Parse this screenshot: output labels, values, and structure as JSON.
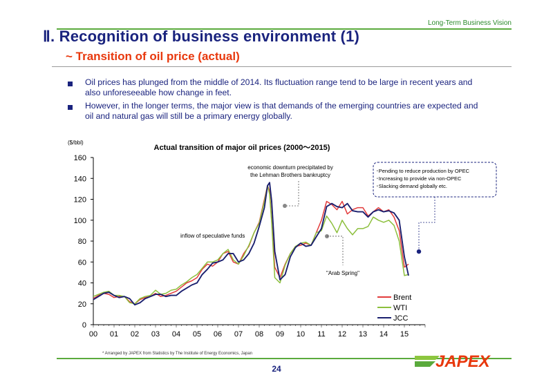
{
  "header": {
    "tag": "Long-Term Business Vision",
    "title": "Ⅱ. Recognition of business environment (1)",
    "subtitle": "~ Transition of oil price (actual)"
  },
  "bullets": [
    "Oil prices has plunged from the middle of 2014. Its fluctuation range tend to be large in recent years and also unforeseeable how change in feet.",
    "However, in the longer terms, the major view is that demands of the emerging countries are expected and oil and natural gas will still be a primary energy globally."
  ],
  "chart_data": {
    "type": "line",
    "title": "Actual transition of major oil prices (2000～2015)",
    "ylabel": "($/bbl)",
    "xlabel": "",
    "ylim": [
      0,
      160
    ],
    "yticks": [
      "0",
      "20",
      "40",
      "60",
      "80",
      "100",
      "120",
      "140",
      "160"
    ],
    "xticks": [
      "00",
      "01",
      "02",
      "03",
      "04",
      "05",
      "06",
      "07",
      "08",
      "09",
      "10",
      "11",
      "12",
      "13",
      "14",
      "15"
    ],
    "xlim": [
      0,
      16
    ],
    "grid": false,
    "legend_position": "bottom-right",
    "x": [
      0,
      0.25,
      0.5,
      0.75,
      1,
      1.25,
      1.5,
      1.75,
      2,
      2.25,
      2.5,
      2.75,
      3,
      3.25,
      3.5,
      3.75,
      4,
      4.25,
      4.5,
      4.75,
      5,
      5.25,
      5.5,
      5.75,
      6,
      6.25,
      6.5,
      6.75,
      7,
      7.25,
      7.5,
      7.75,
      8,
      8.25,
      8.4,
      8.5,
      8.6,
      8.75,
      9,
      9.25,
      9.5,
      9.75,
      10,
      10.25,
      10.5,
      10.75,
      11,
      11.25,
      11.5,
      11.75,
      12,
      12.25,
      12.5,
      12.75,
      13,
      13.25,
      13.5,
      13.75,
      14,
      14.25,
      14.5,
      14.75,
      15,
      15.2
    ],
    "series": [
      {
        "name": "Brent",
        "color": "#e23b3b",
        "values": [
          25,
          28,
          30,
          29,
          26,
          27,
          27,
          22,
          20,
          24,
          26,
          27,
          30,
          27,
          28,
          30,
          32,
          36,
          40,
          42,
          45,
          53,
          58,
          56,
          60,
          68,
          70,
          60,
          58,
          68,
          75,
          88,
          98,
          120,
          133,
          128,
          100,
          55,
          45,
          58,
          68,
          75,
          76,
          78,
          76,
          88,
          100,
          118,
          115,
          110,
          118,
          106,
          110,
          112,
          112,
          104,
          108,
          112,
          108,
          110,
          103,
          90,
          55,
          58
        ]
      },
      {
        "name": "WTI",
        "color": "#8cbf3c",
        "values": [
          27,
          29,
          31,
          32,
          28,
          28,
          27,
          21,
          20,
          25,
          27,
          28,
          33,
          29,
          30,
          33,
          34,
          38,
          41,
          45,
          48,
          54,
          60,
          60,
          62,
          68,
          72,
          62,
          58,
          66,
          76,
          88,
          97,
          118,
          133,
          125,
          98,
          45,
          40,
          57,
          68,
          75,
          78,
          79,
          76,
          88,
          90,
          104,
          97,
          88,
          100,
          92,
          86,
          92,
          92,
          94,
          103,
          100,
          98,
          100,
          95,
          80,
          47,
          48
        ]
      },
      {
        "name": "JCC",
        "color": "#1a1f6e",
        "values": [
          24,
          27,
          30,
          31,
          28,
          26,
          27,
          25,
          19,
          21,
          25,
          27,
          29,
          29,
          27,
          28,
          28,
          32,
          35,
          38,
          40,
          48,
          53,
          59,
          60,
          62,
          68,
          68,
          60,
          62,
          68,
          78,
          94,
          112,
          133,
          136,
          118,
          70,
          43,
          48,
          65,
          74,
          78,
          75,
          76,
          84,
          92,
          113,
          116,
          113,
          112,
          116,
          109,
          108,
          108,
          103,
          108,
          110,
          108,
          109,
          107,
          100,
          65,
          47
        ]
      }
    ],
    "annotations": [
      {
        "text": [
          "economic downturn precipitated by",
          "the Lehman Brothers bankruptcy"
        ],
        "x": 8.5,
        "y": 134
      },
      {
        "text": [
          "inflow of speculative funds"
        ]
      },
      {
        "text": [
          "\"Arab Spring\""
        ],
        "x": 11,
        "y": 84
      },
      {
        "text": [
          "･Pending to reduce production by OPEC",
          "･Increasing to provide via non-OPEC",
          "･Slacking demand globally             etc."
        ],
        "x": 15.1,
        "y": 70
      }
    ]
  },
  "footnote": "* Arranged by JAPEX from Statistics by The Institute of Energy Economics, Japan",
  "page_number": "24",
  "logo_text": "JAPEX"
}
